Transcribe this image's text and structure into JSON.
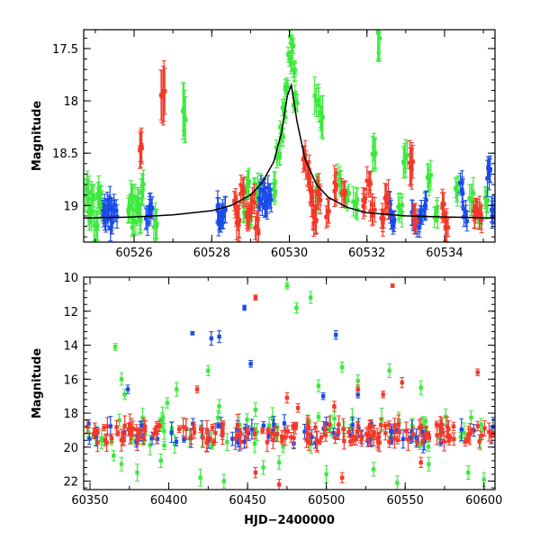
{
  "colors": {
    "green": "#3ee83e",
    "blue": "#1a4be8",
    "red": "#f2392a",
    "model": "#000000"
  },
  "chart_data": [
    {
      "type": "scatter",
      "id": "top",
      "title": "",
      "xlabel": "",
      "ylabel": "Magnitude",
      "xlim": [
        60524.7,
        60535.3
      ],
      "ylim": [
        19.35,
        17.32
      ],
      "xticks": [
        60526,
        60528,
        60530,
        60532,
        60534
      ],
      "yticks": [
        17.5,
        18,
        18.5,
        19
      ],
      "xtick_labels": [
        "60526",
        "60528",
        "60530",
        "60532",
        "60534"
      ],
      "ytick_labels": [
        "17.5",
        "18",
        "18.5",
        "19"
      ],
      "grid": false,
      "error_bars": true,
      "model_curve": {
        "name": "",
        "color": "model",
        "x": [
          60524.7,
          60526,
          60527,
          60528,
          60528.5,
          60529,
          60529.3,
          60529.6,
          60529.8,
          60529.95,
          60530.05,
          60530.2,
          60530.4,
          60530.7,
          60531.0,
          60531.5,
          60532,
          60533,
          60534,
          60535.3
        ],
        "y": [
          19.12,
          19.11,
          19.09,
          19.05,
          19.0,
          18.9,
          18.78,
          18.58,
          18.3,
          17.95,
          17.85,
          18.2,
          18.55,
          18.8,
          18.92,
          19.02,
          19.07,
          19.1,
          19.11,
          19.12
        ]
      },
      "series": [
        {
          "color": "green",
          "x": [
            60524.78,
            60524.85,
            60524.92,
            60525.0,
            60525.08,
            60525.16,
            60525.85,
            60525.92,
            60526.0,
            60526.08,
            60526.15,
            60526.22,
            60526.55,
            60527.3,
            60528.85,
            60528.92,
            60529.0,
            60529.1,
            60529.2,
            60529.6,
            60529.7,
            60529.8,
            60529.88,
            60529.94,
            60530.0,
            60530.05,
            60530.1,
            60530.15,
            60530.7,
            60530.75,
            60530.85,
            60531.3,
            60531.5,
            60531.7,
            60532.2,
            60532.3,
            60532.85,
            60533.0,
            60533.6,
            60533.8,
            60534.3,
            60534.7,
            60534.9,
            60535.1
          ],
          "y": [
            18.85,
            19.1,
            18.95,
            19.2,
            18.9,
            19.0,
            19.05,
            18.9,
            19.15,
            18.95,
            19.1,
            18.85,
            19.2,
            18.15,
            19.0,
            18.8,
            19.1,
            18.9,
            18.85,
            18.85,
            18.5,
            18.3,
            18.1,
            17.85,
            17.6,
            17.45,
            17.7,
            18.0,
            18.0,
            18.9,
            18.15,
            18.75,
            18.95,
            19.0,
            18.5,
            17.35,
            19.0,
            18.55,
            18.75,
            19.05,
            18.85,
            18.95,
            19.1,
            18.95
          ],
          "err": [
            0.15,
            0.12,
            0.14,
            0.13,
            0.12,
            0.13,
            0.12,
            0.14,
            0.12,
            0.12,
            0.13,
            0.14,
            0.15,
            0.25,
            0.12,
            0.13,
            0.1,
            0.12,
            0.1,
            0.1,
            0.09,
            0.08,
            0.07,
            0.07,
            0.07,
            0.08,
            0.08,
            0.08,
            0.15,
            0.12,
            0.2,
            0.12,
            0.1,
            0.12,
            0.15,
            0.25,
            0.12,
            0.18,
            0.12,
            0.1,
            0.12,
            0.15,
            0.1,
            0.12
          ]
        },
        {
          "color": "blue",
          "x": [
            60525.2,
            60525.28,
            60525.35,
            60525.42,
            60525.5,
            60526.35,
            60526.42,
            60528.15,
            60528.22,
            60528.3,
            60529.25,
            60529.32,
            60529.4,
            60529.48,
            60532.6,
            60532.7,
            60533.2,
            60533.3,
            60533.4,
            60533.5,
            60534.45,
            60534.55,
            60535.15,
            60535.25
          ],
          "y": [
            19.05,
            19.1,
            19.0,
            19.15,
            19.05,
            19.1,
            19.0,
            19.05,
            19.15,
            19.1,
            18.95,
            18.85,
            19.0,
            18.9,
            19.05,
            19.15,
            19.1,
            19.2,
            19.05,
            19.0,
            18.85,
            19.1,
            18.7,
            19.05
          ],
          "err": [
            0.1,
            0.1,
            0.1,
            0.12,
            0.1,
            0.1,
            0.12,
            0.12,
            0.1,
            0.12,
            0.1,
            0.1,
            0.1,
            0.1,
            0.12,
            0.1,
            0.12,
            0.1,
            0.1,
            0.12,
            0.12,
            0.1,
            0.15,
            0.12
          ]
        },
        {
          "color": "red",
          "x": [
            60526.2,
            60526.75,
            60528.6,
            60528.7,
            60528.8,
            60528.95,
            60529.05,
            60529.15,
            60530.4,
            60530.48,
            60530.55,
            60530.62,
            60530.68,
            60530.75,
            60531.0,
            60531.2,
            60531.4,
            60531.9,
            60532.05,
            60532.15,
            60532.4,
            60532.5,
            60533.15,
            60533.25,
            60533.95,
            60534.05,
            60534.8,
            60534.9
          ],
          "y": [
            18.45,
            17.95,
            19.0,
            19.15,
            18.85,
            19.1,
            18.95,
            19.2,
            18.55,
            18.7,
            18.85,
            19.05,
            19.15,
            18.9,
            19.05,
            18.8,
            18.9,
            18.95,
            18.8,
            19.05,
            19.1,
            18.95,
            18.6,
            19.1,
            19.0,
            19.15,
            19.05,
            19.1
          ],
          "err": [
            0.15,
            0.28,
            0.12,
            0.15,
            0.12,
            0.13,
            0.12,
            0.15,
            0.12,
            0.12,
            0.13,
            0.15,
            0.12,
            0.14,
            0.12,
            0.15,
            0.12,
            0.12,
            0.12,
            0.13,
            0.12,
            0.14,
            0.2,
            0.12,
            0.12,
            0.12,
            0.12,
            0.13
          ]
        }
      ]
    },
    {
      "type": "scatter",
      "id": "bottom",
      "title": "",
      "xlabel": "HJD−2400000",
      "ylabel": "Magnitude",
      "xlim": [
        60346,
        60607
      ],
      "ylim": [
        22.5,
        10.0
      ],
      "xticks": [
        60350,
        60400,
        60450,
        60500,
        60550,
        60600
      ],
      "yticks": [
        10,
        12,
        14,
        16,
        18,
        20,
        22
      ],
      "xtick_labels": [
        "60350",
        "60400",
        "60450",
        "60500",
        "60550",
        "60600"
      ],
      "ytick_labels": [
        "10",
        "12",
        "14",
        "16",
        "18",
        "20",
        "22"
      ],
      "grid": false,
      "error_bars": true,
      "band": {
        "color": "red",
        "x_start": 60348,
        "x_end": 60606,
        "center": 19.2,
        "spread": 0.55,
        "count": 170
      },
      "band_blue": {
        "color": "blue",
        "x_start": 60348,
        "x_end": 60606,
        "center": 19.2,
        "spread": 0.6,
        "count": 70
      },
      "band_green": {
        "color": "green",
        "x_start": 60348,
        "x_end": 60606,
        "center": 19.1,
        "spread": 0.9,
        "count": 70
      },
      "series": [
        {
          "color": "green",
          "x": [
            60366,
            60370,
            60372,
            60399,
            60405,
            60425,
            60432,
            60437,
            60455,
            60475,
            60481,
            60490,
            60495,
            60510,
            60520,
            60540,
            60560,
            60365,
            60370,
            60380,
            60395,
            60420,
            60435,
            60460,
            60470,
            60500,
            60530,
            60545,
            60565,
            60590,
            60600
          ],
          "y": [
            14.1,
            16.0,
            16.9,
            17.4,
            16.6,
            15.5,
            17.6,
            19.7,
            17.8,
            10.5,
            11.8,
            11.2,
            16.4,
            15.3,
            16.1,
            15.5,
            16.5,
            20.5,
            21.0,
            21.5,
            20.8,
            21.8,
            22.0,
            21.2,
            20.9,
            21.6,
            21.3,
            22.1,
            21.0,
            21.5,
            21.9
          ],
          "err": [
            0.2,
            0.35,
            0.3,
            0.3,
            0.4,
            0.3,
            0.4,
            0.5,
            0.4,
            0.2,
            0.3,
            0.35,
            0.35,
            0.3,
            0.35,
            0.4,
            0.4,
            0.3,
            0.4,
            0.5,
            0.4,
            0.5,
            0.4,
            0.4,
            0.4,
            0.5,
            0.4,
            0.4,
            0.4,
            0.4,
            0.4
          ]
        },
        {
          "color": "blue",
          "x": [
            60374,
            60415,
            60427,
            60432,
            60448,
            60452,
            60498,
            60506,
            60520
          ],
          "y": [
            16.6,
            13.3,
            13.6,
            13.5,
            11.8,
            15.1,
            17.0,
            13.4,
            16.9
          ],
          "err": [
            0.25,
            0.1,
            0.4,
            0.35,
            0.15,
            0.2,
            0.2,
            0.25,
            0.2
          ]
        },
        {
          "color": "red",
          "x": [
            60418,
            60455,
            60475,
            60482,
            60505,
            60520,
            60536,
            60542,
            60548,
            60596,
            60455,
            60470,
            60510,
            60560
          ],
          "y": [
            16.6,
            11.2,
            17.1,
            17.7,
            17.6,
            16.6,
            16.9,
            10.5,
            16.2,
            15.6,
            21.5,
            22.2,
            21.8,
            20.9
          ],
          "err": [
            0.2,
            0.15,
            0.3,
            0.25,
            0.3,
            0.25,
            0.2,
            0.1,
            0.3,
            0.2,
            0.3,
            0.3,
            0.3,
            0.3
          ]
        }
      ]
    }
  ]
}
